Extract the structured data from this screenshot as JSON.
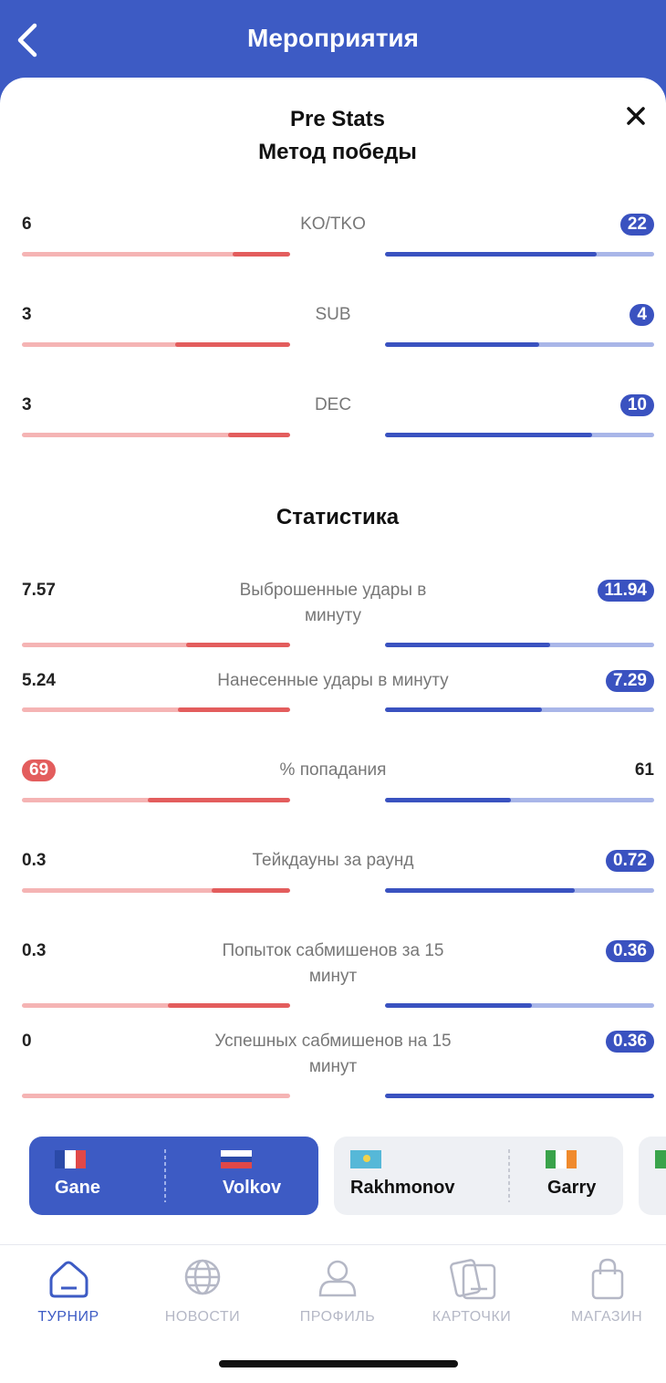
{
  "header": {
    "title": "Мероприятия"
  },
  "panel": {
    "title": "Pre Stats",
    "subtitle": "Метод победы"
  },
  "win_methods": [
    {
      "label_lines": [
        "KO/TKO"
      ],
      "left": "6",
      "right": "22"
    },
    {
      "label_lines": [
        "SUB"
      ],
      "left": "3",
      "right": "4"
    },
    {
      "label_lines": [
        "DEC"
      ],
      "left": "3",
      "right": "10"
    }
  ],
  "stats": {
    "title": "Статистика",
    "rows": [
      {
        "label_lines": [
          "Выброшенные удары в",
          "минуту"
        ],
        "left": "7.57",
        "right": "11.94"
      },
      {
        "label_lines": [
          "Нанесенные удары в минуту"
        ],
        "left": "5.24",
        "right": "7.29"
      },
      {
        "label_lines": [
          "% попадания"
        ],
        "left": "69",
        "right": "61"
      },
      {
        "label_lines": [
          "Тейкдауны за раунд"
        ],
        "left": "0.3",
        "right": "0.72"
      },
      {
        "label_lines": [
          "Попыток сабмишенов за 15",
          "минут"
        ],
        "left": "0.3",
        "right": "0.36"
      },
      {
        "label_lines": [
          "Успешных сабмишенов на 15",
          "минут"
        ],
        "left": "0",
        "right": "0.36"
      }
    ]
  },
  "fights": [
    {
      "left": "Gane",
      "right": "Volkov"
    },
    {
      "left": "Rakhmonov",
      "right": "Garry"
    }
  ],
  "nav": [
    {
      "label": "ТУРНИР"
    },
    {
      "label": "НОВОСТИ"
    },
    {
      "label": "ПРОФИЛЬ"
    },
    {
      "label": "КАРТОЧКИ"
    },
    {
      "label": "МАГАЗИН"
    }
  ]
}
